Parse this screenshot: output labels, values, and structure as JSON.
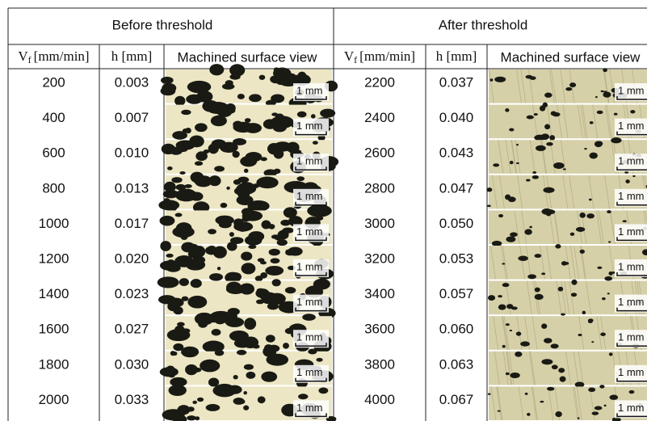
{
  "header": {
    "groups": [
      "Before threshold",
      "After threshold"
    ],
    "feed_column": {
      "symbol": "V",
      "subscript": "f",
      "unit": "[mm/min]"
    },
    "depth_column": "h [mm]",
    "view_column": "Machined surface view"
  },
  "scale_bar": "1 mm",
  "before": [
    [
      "200",
      "0.003"
    ],
    [
      "400",
      "0.007"
    ],
    [
      "600",
      "0.010"
    ],
    [
      "800",
      "0.013"
    ],
    [
      "1000",
      "0.017"
    ],
    [
      "1200",
      "0.020"
    ],
    [
      "1400",
      "0.023"
    ],
    [
      "1600",
      "0.027"
    ],
    [
      "1800",
      "0.030"
    ],
    [
      "2000",
      "0.033"
    ]
  ],
  "after": [
    [
      "2200",
      "0.037"
    ],
    [
      "2400",
      "0.040"
    ],
    [
      "2600",
      "0.043"
    ],
    [
      "2800",
      "0.047"
    ],
    [
      "3000",
      "0.050"
    ],
    [
      "3200",
      "0.053"
    ],
    [
      "3400",
      "0.057"
    ],
    [
      "3600",
      "0.060"
    ],
    [
      "3800",
      "0.063"
    ],
    [
      "4000",
      "0.067"
    ]
  ]
}
